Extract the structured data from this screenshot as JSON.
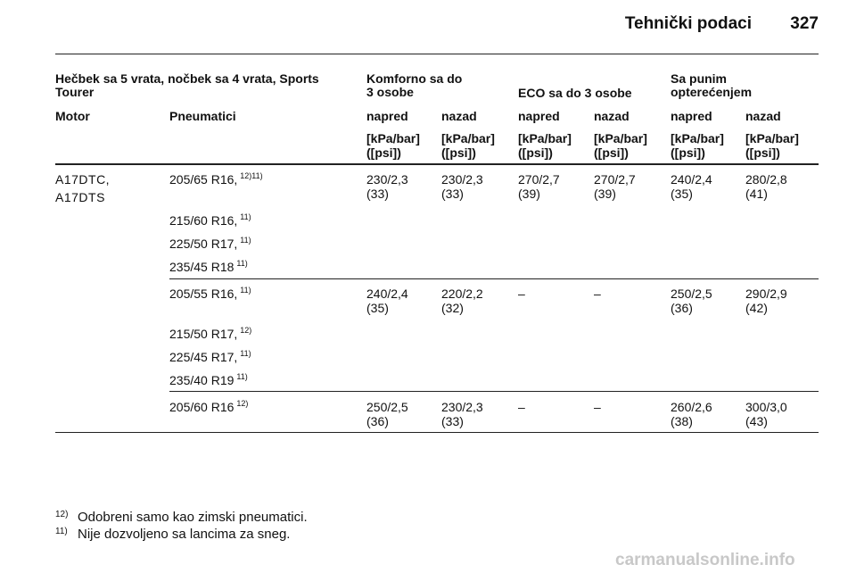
{
  "header": {
    "title": "Tehnički podaci",
    "page": "327"
  },
  "table": {
    "group_headers": [
      [
        "Hečbek sa 5 vrata, nočbek sa 4 vrata, Sports",
        "Tourer"
      ],
      [
        "Komforno sa do",
        "3 osobe"
      ],
      [
        "ECO sa do 3 osobe"
      ],
      [
        "Sa punim",
        "opterećenjem"
      ]
    ],
    "columns": [
      "Motor",
      "Pneumatici",
      "napred",
      "nazad",
      "napred",
      "nazad",
      "napred",
      "nazad"
    ],
    "units": [
      [
        "[kPa/bar]",
        "([psi])"
      ],
      [
        "[kPa/bar]",
        "([psi])"
      ],
      [
        "[kPa/bar]",
        "([psi])"
      ],
      [
        "[kPa/bar]",
        "([psi])"
      ],
      [
        "[kPa/bar]",
        "([psi])"
      ],
      [
        "[kPa/bar]",
        "([psi])"
      ]
    ],
    "groups": [
      {
        "motor": [
          "A17DTC,",
          "A17DTS"
        ],
        "tyres": [
          {
            "size": "205/65 R16,",
            "note": "12)11)"
          },
          {
            "size": "215/60 R16,",
            "note": "11)"
          },
          {
            "size": "225/50 R17,",
            "note": "11)"
          },
          {
            "size": "235/45 R18",
            "note": "11)"
          }
        ],
        "pressures": [
          [
            "230/2,3",
            "(33)"
          ],
          [
            "230/2,3",
            "(33)"
          ],
          [
            "270/2,7",
            "(39)"
          ],
          [
            "270/2,7",
            "(39)"
          ],
          [
            "240/2,4",
            "(35)"
          ],
          [
            "280/2,8",
            "(41)"
          ]
        ]
      },
      {
        "motor": [],
        "tyres": [
          {
            "size": "205/55 R16,",
            "note": "11)"
          },
          {
            "size": "215/50 R17,",
            "note": "12)"
          },
          {
            "size": "225/45 R17,",
            "note": "11)"
          },
          {
            "size": "235/40 R19",
            "note": "11)"
          }
        ],
        "pressures": [
          [
            "240/2,4",
            "(35)"
          ],
          [
            "220/2,2",
            "(32)"
          ],
          [
            "–"
          ],
          [
            "–"
          ],
          [
            "250/2,5",
            "(36)"
          ],
          [
            "290/2,9",
            "(42)"
          ]
        ]
      },
      {
        "motor": [],
        "tyres": [
          {
            "size": "205/60 R16",
            "note": "12)"
          }
        ],
        "pressures": [
          [
            "250/2,5",
            "(36)"
          ],
          [
            "230/2,3",
            "(33)"
          ],
          [
            "–"
          ],
          [
            "–"
          ],
          [
            "260/2,6",
            "(38)"
          ],
          [
            "300/3,0",
            "(43)"
          ]
        ]
      }
    ]
  },
  "footnotes": [
    {
      "mark": "12)",
      "text": "Odobreni samo kao zimski pneumatici."
    },
    {
      "mark": "11)",
      "text": "Nije dozvoljeno sa lancima za sneg."
    }
  ],
  "watermark": "carmanualsonline.info"
}
